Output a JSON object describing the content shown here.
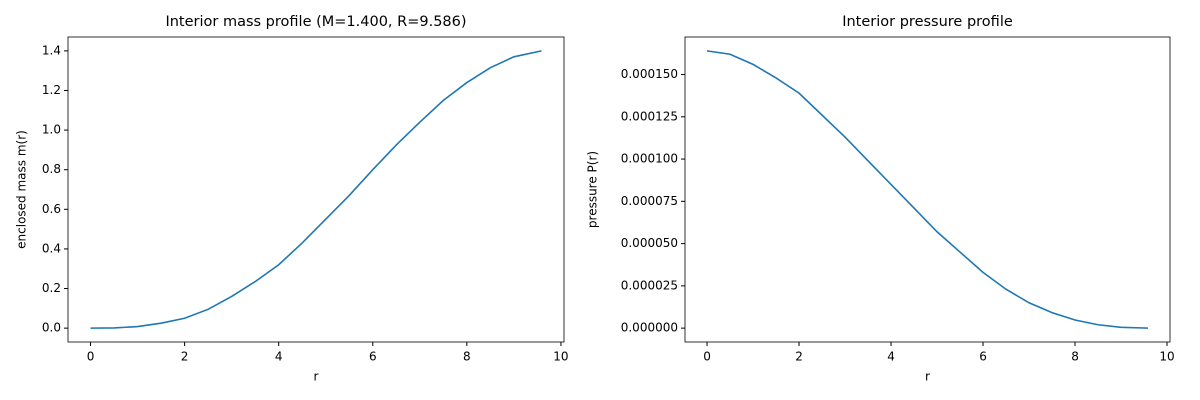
{
  "chart_data": [
    {
      "type": "line",
      "title": "Interior mass profile (M=1.400, R=9.586)",
      "xlabel": "r",
      "ylabel": "enclosed mass m(r)",
      "x": [
        0,
        0.5,
        1,
        1.5,
        2,
        2.5,
        3,
        3.5,
        4,
        4.5,
        5,
        5.5,
        6,
        6.5,
        7,
        7.5,
        8,
        8.5,
        9,
        9.586
      ],
      "values": [
        0,
        0.001,
        0.008,
        0.025,
        0.05,
        0.095,
        0.16,
        0.235,
        0.32,
        0.43,
        0.55,
        0.67,
        0.8,
        0.925,
        1.04,
        1.15,
        1.24,
        1.315,
        1.37,
        1.4
      ],
      "color": "#1f77b4",
      "xlim": [
        -0.479,
        10.065
      ],
      "xticks": [
        0,
        2,
        4,
        6,
        8,
        10
      ],
      "ylim": [
        -0.07,
        1.47
      ],
      "yticks": [
        {
          "value": 0,
          "label": "0.0"
        },
        0.2,
        0.4,
        0.6,
        0.8,
        {
          "value": 1,
          "label": "1.0"
        },
        1.2,
        1.4
      ]
    },
    {
      "type": "line",
      "title": "Interior pressure profile",
      "xlabel": "r",
      "ylabel": "pressure P(r)",
      "x": [
        0,
        0.5,
        1,
        1.5,
        2,
        2.5,
        3,
        3.5,
        4,
        4.5,
        5,
        5.5,
        6,
        6.5,
        7,
        7.5,
        8,
        8.5,
        9,
        9.586
      ],
      "values": [
        0.000164,
        0.000162,
        0.000156,
        0.000148,
        0.000139,
        0.000126,
        0.000113,
        9.9e-05,
        8.5e-05,
        7.1e-05,
        5.7e-05,
        4.5e-05,
        3.3e-05,
        2.3e-05,
        1.5e-05,
        9.2e-06,
        4.8e-06,
        2e-06,
        5e-07,
        0
      ],
      "color": "#1f77b4",
      "xlim": [
        -0.479,
        10.065
      ],
      "xticks": [
        0,
        2,
        4,
        6,
        8,
        10
      ],
      "ylim": [
        -8.2e-06,
        0.0001722
      ],
      "yticks": [
        {
          "value": 0,
          "label": "0.000000"
        },
        {
          "value": 2.5e-05,
          "label": "0.000025"
        },
        {
          "value": 5e-05,
          "label": "0.000050"
        },
        {
          "value": 7.5e-05,
          "label": "0.000075"
        },
        {
          "value": 0.0001,
          "label": "0.000100"
        },
        {
          "value": 0.000125,
          "label": "0.000125"
        },
        {
          "value": 0.00015,
          "label": "0.000150"
        }
      ]
    }
  ]
}
